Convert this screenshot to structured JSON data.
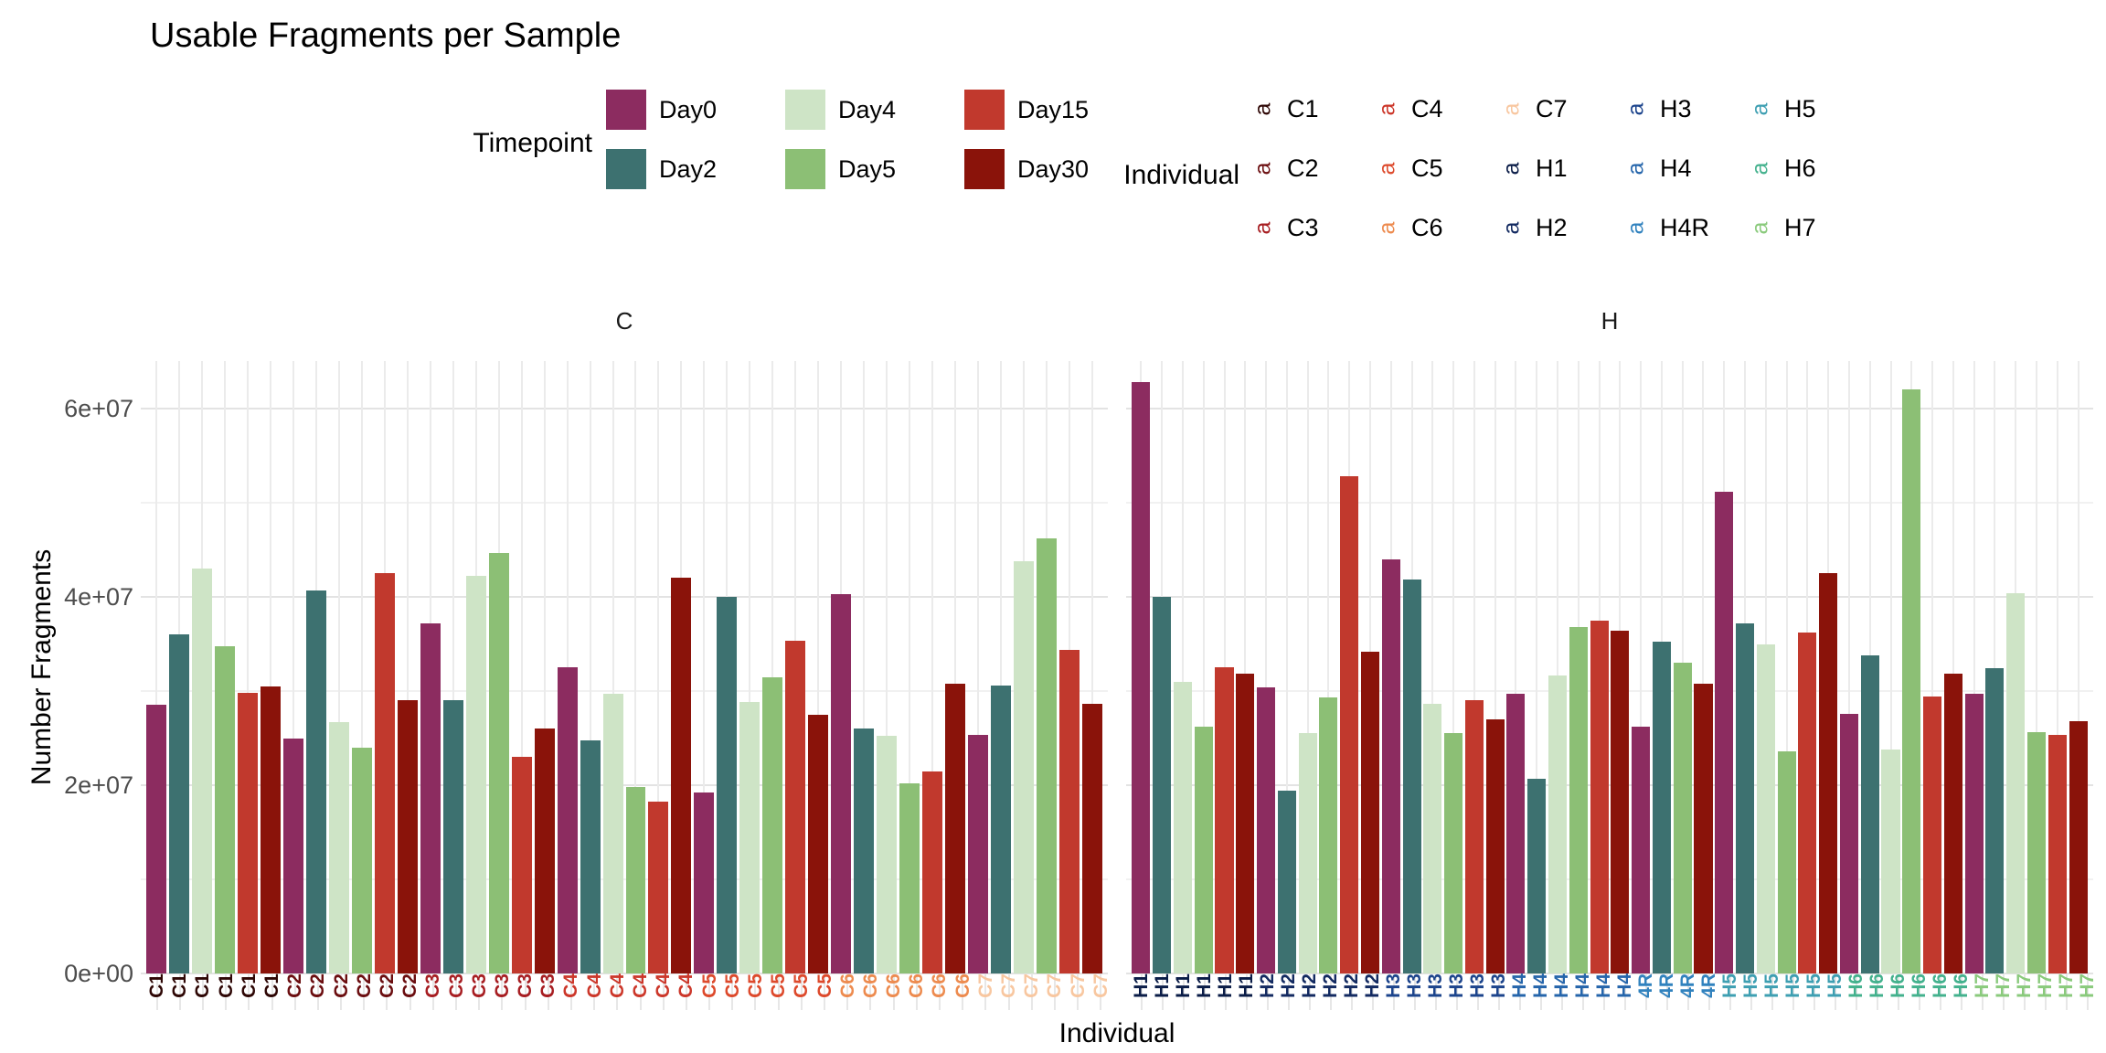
{
  "page": {
    "title": "Usable Fragments per Sample",
    "x_axis_title": "Individual",
    "y_axis_title": "Number Fragments"
  },
  "legends": {
    "timepoint": {
      "title": "Timepoint",
      "entries": [
        {
          "label": "Day0",
          "color": "#8C2C60"
        },
        {
          "label": "Day2",
          "color": "#3D7170"
        },
        {
          "label": "Day4",
          "color": "#CEE4C6"
        },
        {
          "label": "Day5",
          "color": "#8CBF75"
        },
        {
          "label": "Day15",
          "color": "#C1392D"
        },
        {
          "label": "Day30",
          "color": "#8A130A"
        }
      ]
    },
    "individual": {
      "title": "Individual",
      "key_glyph": "a",
      "entries": [
        {
          "label": "C1",
          "color": "#2E0705"
        },
        {
          "label": "C2",
          "color": "#6B0E10"
        },
        {
          "label": "C3",
          "color": "#A71E22"
        },
        {
          "label": "C4",
          "color": "#CC372A"
        },
        {
          "label": "C5",
          "color": "#DD4A2C"
        },
        {
          "label": "C6",
          "color": "#ED8B4F"
        },
        {
          "label": "C7",
          "color": "#F8C7A0"
        },
        {
          "label": "H1",
          "color": "#0A1C47"
        },
        {
          "label": "H2",
          "color": "#132A61"
        },
        {
          "label": "H3",
          "color": "#1C448C"
        },
        {
          "label": "H4",
          "color": "#2565AB"
        },
        {
          "label": "H4R",
          "color": "#3182BE"
        },
        {
          "label": "H5",
          "color": "#3E9FB2"
        },
        {
          "label": "H6",
          "color": "#43B18D"
        },
        {
          "label": "H7",
          "color": "#8ACA7C"
        }
      ]
    }
  },
  "chart_data": {
    "type": "bar",
    "title": "Usable Fragments per Sample",
    "xlabel": "Individual",
    "ylabel": "Number Fragments",
    "ylim": [
      0,
      65000000
    ],
    "grid": true,
    "legend_position": "top",
    "yticks": [
      {
        "value": 0,
        "label": "0e+00"
      },
      {
        "value": 20000000,
        "label": "2e+07"
      },
      {
        "value": 40000000,
        "label": "4e+07"
      },
      {
        "value": 60000000,
        "label": "6e+07"
      }
    ],
    "yticks_minor": [
      10000000,
      30000000,
      50000000
    ],
    "timepoints": [
      {
        "name": "Day0",
        "color": "#8C2C60"
      },
      {
        "name": "Day2",
        "color": "#3D7170"
      },
      {
        "name": "Day4",
        "color": "#CEE4C6"
      },
      {
        "name": "Day5",
        "color": "#8CBF75"
      },
      {
        "name": "Day15",
        "color": "#C1392D"
      },
      {
        "name": "Day30",
        "color": "#8A130A"
      }
    ],
    "facets": [
      {
        "name": "C",
        "individuals": [
          {
            "id": "C1",
            "axis_label": "C1",
            "axis_label_color": "#2E0705",
            "bars": [
              {
                "t": "Day0",
                "v": 28500000
              },
              {
                "t": "Day2",
                "v": 36000000
              },
              {
                "t": "Day4",
                "v": 43000000
              },
              {
                "t": "Day5",
                "v": 34800000
              },
              {
                "t": "Day15",
                "v": 29800000
              },
              {
                "t": "Day30",
                "v": 30500000
              }
            ]
          },
          {
            "id": "C2",
            "axis_label": "C2",
            "axis_label_color": "#6B0E10",
            "bars": [
              {
                "t": "Day0",
                "v": 25000000
              },
              {
                "t": "Day2",
                "v": 40700000
              },
              {
                "t": "Day4",
                "v": 26700000
              },
              {
                "t": "Day5",
                "v": 24000000
              },
              {
                "t": "Day15",
                "v": 42500000
              },
              {
                "t": "Day30",
                "v": 29000000
              }
            ]
          },
          {
            "id": "C3",
            "axis_label": "C3",
            "axis_label_color": "#A71E22",
            "bars": [
              {
                "t": "Day0",
                "v": 37200000
              },
              {
                "t": "Day2",
                "v": 29000000
              },
              {
                "t": "Day4",
                "v": 42200000
              },
              {
                "t": "Day5",
                "v": 44700000
              },
              {
                "t": "Day15",
                "v": 23000000
              },
              {
                "t": "Day30",
                "v": 26000000
              }
            ]
          },
          {
            "id": "C4",
            "axis_label": "C4",
            "axis_label_color": "#CC372A",
            "bars": [
              {
                "t": "Day0",
                "v": 32500000
              },
              {
                "t": "Day2",
                "v": 24800000
              },
              {
                "t": "Day4",
                "v": 29700000
              },
              {
                "t": "Day5",
                "v": 19800000
              },
              {
                "t": "Day15",
                "v": 18300000
              },
              {
                "t": "Day30",
                "v": 42000000
              }
            ]
          },
          {
            "id": "C5",
            "axis_label": "C5",
            "axis_label_color": "#DD4A2C",
            "bars": [
              {
                "t": "Day0",
                "v": 19200000
              },
              {
                "t": "Day2",
                "v": 40000000
              },
              {
                "t": "Day4",
                "v": 28800000
              },
              {
                "t": "Day5",
                "v": 31500000
              },
              {
                "t": "Day15",
                "v": 35300000
              },
              {
                "t": "Day30",
                "v": 27500000
              }
            ]
          },
          {
            "id": "C6",
            "axis_label": "C6",
            "axis_label_color": "#ED8B4F",
            "bars": [
              {
                "t": "Day0",
                "v": 40300000
              },
              {
                "t": "Day2",
                "v": 26000000
              },
              {
                "t": "Day4",
                "v": 25200000
              },
              {
                "t": "Day5",
                "v": 20200000
              },
              {
                "t": "Day15",
                "v": 21500000
              },
              {
                "t": "Day30",
                "v": 30800000
              }
            ]
          },
          {
            "id": "C7",
            "axis_label": "C7",
            "axis_label_color": "#F8C7A0",
            "bars": [
              {
                "t": "Day0",
                "v": 25300000
              },
              {
                "t": "Day2",
                "v": 30600000
              },
              {
                "t": "Day4",
                "v": 43800000
              },
              {
                "t": "Day5",
                "v": 46200000
              },
              {
                "t": "Day15",
                "v": 34400000
              },
              {
                "t": "Day30",
                "v": 28600000
              }
            ]
          }
        ]
      },
      {
        "name": "H",
        "individuals": [
          {
            "id": "H1",
            "axis_label": "H1",
            "axis_label_color": "#0A1C47",
            "bars": [
              {
                "t": "Day0",
                "v": 62800000
              },
              {
                "t": "Day2",
                "v": 40000000
              },
              {
                "t": "Day4",
                "v": 31000000
              },
              {
                "t": "Day5",
                "v": 26200000
              },
              {
                "t": "Day15",
                "v": 32500000
              },
              {
                "t": "Day30",
                "v": 31800000
              }
            ]
          },
          {
            "id": "H2",
            "axis_label": "H2",
            "axis_label_color": "#132A61",
            "bars": [
              {
                "t": "Day0",
                "v": 30400000
              },
              {
                "t": "Day2",
                "v": 19400000
              },
              {
                "t": "Day4",
                "v": 25500000
              },
              {
                "t": "Day5",
                "v": 29300000
              },
              {
                "t": "Day15",
                "v": 52800000
              },
              {
                "t": "Day30",
                "v": 34200000
              }
            ]
          },
          {
            "id": "H3",
            "axis_label": "H3",
            "axis_label_color": "#1C448C",
            "bars": [
              {
                "t": "Day0",
                "v": 44000000
              },
              {
                "t": "Day2",
                "v": 41800000
              },
              {
                "t": "Day4",
                "v": 28600000
              },
              {
                "t": "Day5",
                "v": 25500000
              },
              {
                "t": "Day15",
                "v": 29000000
              },
              {
                "t": "Day30",
                "v": 27000000
              }
            ]
          },
          {
            "id": "H4",
            "axis_label": "H4",
            "axis_label_color": "#2565AB",
            "bars": [
              {
                "t": "Day0",
                "v": 29700000
              },
              {
                "t": "Day2",
                "v": 20700000
              },
              {
                "t": "Day4",
                "v": 31700000
              },
              {
                "t": "Day5",
                "v": 36800000
              },
              {
                "t": "Day15",
                "v": 37500000
              },
              {
                "t": "Day30",
                "v": 36400000
              }
            ]
          },
          {
            "id": "H4R",
            "axis_label": "4R",
            "axis_label_color": "#3182BE",
            "bars": [
              {
                "t": "Day0",
                "v": 26200000
              },
              {
                "t": "Day2",
                "v": 35200000
              },
              {
                "t": "Day5",
                "v": 33000000
              },
              {
                "t": "Day30",
                "v": 30800000
              }
            ]
          },
          {
            "id": "H5",
            "axis_label": "H5",
            "axis_label_color": "#3E9FB2",
            "bars": [
              {
                "t": "Day0",
                "v": 51200000
              },
              {
                "t": "Day2",
                "v": 37200000
              },
              {
                "t": "Day4",
                "v": 35000000
              },
              {
                "t": "Day5",
                "v": 23600000
              },
              {
                "t": "Day15",
                "v": 36200000
              },
              {
                "t": "Day30",
                "v": 42500000
              }
            ]
          },
          {
            "id": "H6",
            "axis_label": "H6",
            "axis_label_color": "#43B18D",
            "bars": [
              {
                "t": "Day0",
                "v": 27600000
              },
              {
                "t": "Day2",
                "v": 33800000
              },
              {
                "t": "Day4",
                "v": 23800000
              },
              {
                "t": "Day5",
                "v": 62000000
              },
              {
                "t": "Day15",
                "v": 29400000
              },
              {
                "t": "Day30",
                "v": 31800000
              }
            ]
          },
          {
            "id": "H7",
            "axis_label": "H7",
            "axis_label_color": "#8ACA7C",
            "bars": [
              {
                "t": "Day0",
                "v": 29700000
              },
              {
                "t": "Day2",
                "v": 32400000
              },
              {
                "t": "Day4",
                "v": 40400000
              },
              {
                "t": "Day5",
                "v": 25600000
              },
              {
                "t": "Day15",
                "v": 25300000
              },
              {
                "t": "Day30",
                "v": 26800000
              }
            ]
          }
        ]
      }
    ]
  }
}
